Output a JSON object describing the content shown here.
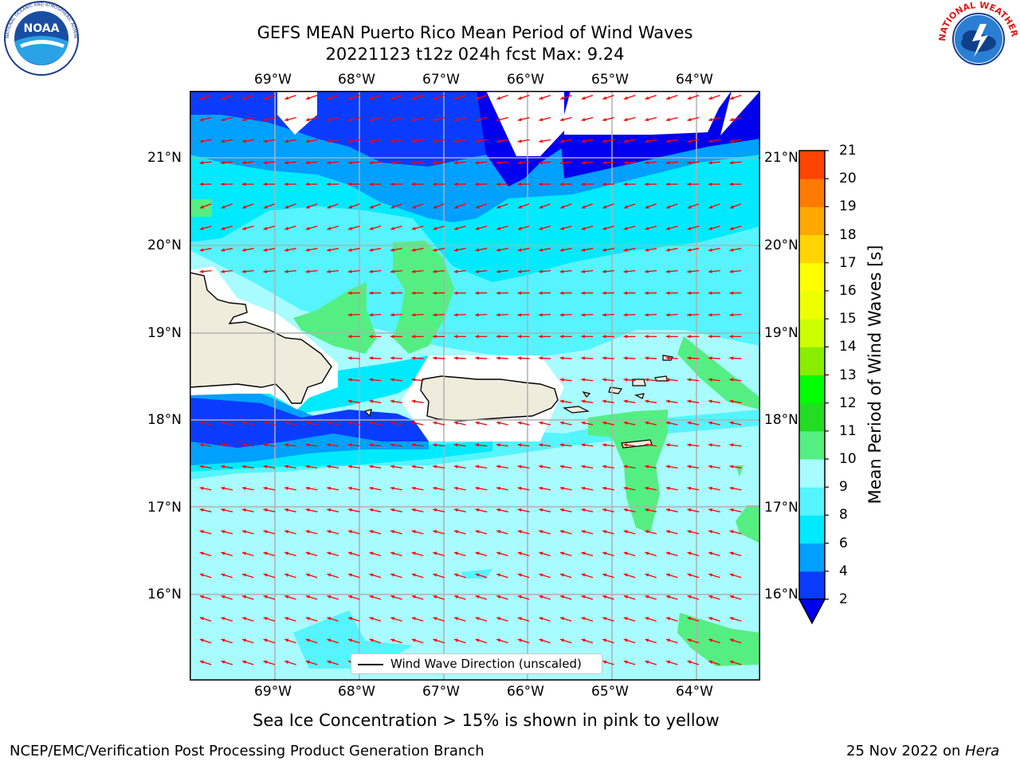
{
  "title": {
    "line1": "GEFS MEAN Puerto Rico Mean Period of Wind Waves",
    "line2": "20221123 t12z 024h fcst   Max: 9.24"
  },
  "logos": {
    "left": "noara-logo",
    "right": "national-weather-service-logo"
  },
  "map": {
    "lon_labels": [
      "69°W",
      "68°W",
      "67°W",
      "66°W",
      "65°W",
      "64°W"
    ],
    "lat_labels": [
      "21°N",
      "20°N",
      "19°N",
      "18°N",
      "17°N",
      "16°N"
    ],
    "extent": {
      "lon": [
        -70.0,
        -63.25
      ],
      "lat": [
        15.0,
        21.75
      ]
    },
    "wind_wave_direction": "from east-northeast (westward), tilted southward in the north",
    "legend": "Wind Wave Direction (unscaled)",
    "arrow_color": "#ff0000",
    "land_color": "#efecdc"
  },
  "colorbar": {
    "label": "Mean Period of Wind Waves [s]",
    "ticks": [
      "2",
      "4",
      "6",
      "8",
      "9",
      "10",
      "11",
      "12",
      "13",
      "14",
      "15",
      "16",
      "17",
      "18",
      "19",
      "20",
      "21"
    ],
    "colors": [
      "#0a3cff",
      "#00a0ff",
      "#00eaff",
      "#55f4ff",
      "#a8fbff",
      "#55ee82",
      "#22dd22",
      "#00ff00",
      "#88ee00",
      "#ccff00",
      "#eeff00",
      "#ffff00",
      "#ffd400",
      "#ffa800",
      "#ff7a00",
      "#ff4400",
      "#ff1a00"
    ],
    "under_color": "#0000ee"
  },
  "note": "Sea Ice Concentration > 15% is shown in pink to yellow",
  "footer": {
    "left": "NCEP/EMC/Verification Post Processing Product Generation Branch",
    "right_date": "25 Nov 2022 on ",
    "right_host": "Hera"
  }
}
